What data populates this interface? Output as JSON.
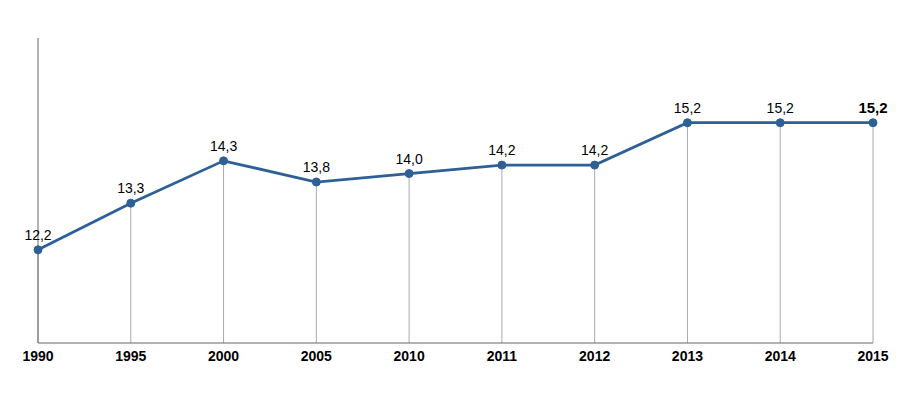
{
  "chart_data": {
    "type": "line",
    "categories": [
      "1990",
      "1995",
      "2000",
      "2005",
      "2010",
      "2011",
      "2012",
      "2013",
      "2014",
      "2015"
    ],
    "values": [
      12.2,
      13.3,
      14.3,
      13.8,
      14.0,
      14.2,
      14.2,
      15.2,
      15.2,
      15.2
    ],
    "value_labels": [
      "12,2",
      "13,3",
      "14,3",
      "13,8",
      "14,0",
      "14,2",
      "14,2",
      "15,2",
      "15,2",
      "15,2"
    ],
    "color": "#2E6096",
    "ylim": [
      10.0,
      17.2
    ],
    "data_labels": true,
    "tick_labels": "x",
    "marker": "circle",
    "grid": false
  }
}
